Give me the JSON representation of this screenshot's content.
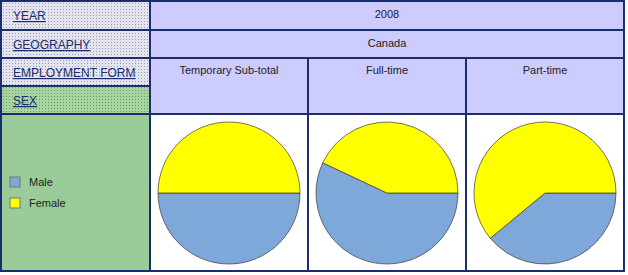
{
  "chart_data": {
    "type": "pie",
    "dimensions": [
      {
        "label": "YEAR",
        "value": "2008"
      },
      {
        "label": "GEOGRAPHY",
        "value": "Canada"
      }
    ],
    "column_dimension": "EMPLOYMENT FORM",
    "legend_title": "SEX",
    "categories": [
      "Male",
      "Female"
    ],
    "colors": [
      "#7ea8da",
      "#ffff00"
    ],
    "series": [
      {
        "name": "Temporary Sub-total",
        "values": [
          50,
          50
        ]
      },
      {
        "name": "Full-time",
        "values": [
          57,
          43
        ]
      },
      {
        "name": "Part-time",
        "values": [
          39,
          61
        ]
      }
    ]
  }
}
